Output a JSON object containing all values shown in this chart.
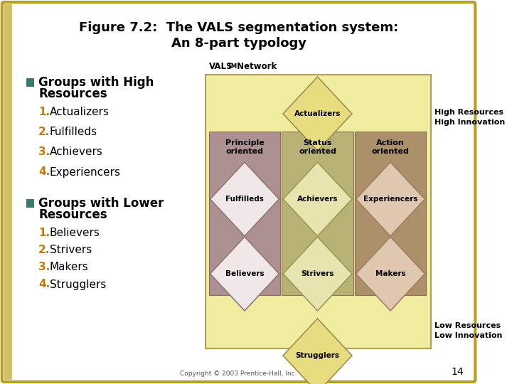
{
  "title_line1": "Figure 7.2:  The VALS segmentation system:",
  "title_line2": "An 8-part typology",
  "bg_color": "#FFFFFF",
  "border_color": "#B8A020",
  "title_color": "#000000",
  "bullet_color": "#3A7A6A",
  "number_color": "#C87800",
  "text_color": "#000000",
  "diagram_bg": "#F0ECA0",
  "diagram_border": "#B0A060",
  "col_colors": [
    "#A08090",
    "#B0A870",
    "#A08060"
  ],
  "col_headers": [
    "Principle\noriented",
    "Status\noriented",
    "Action\noriented"
  ],
  "diamond_data": [
    {
      "label": "Actualizers",
      "col": 1,
      "row": 0,
      "color": "#E8DC80",
      "edge": "#A09050"
    },
    {
      "label": "Fulfilleds",
      "col": 0,
      "row": 1,
      "color": "#F0E8E8",
      "edge": "#907878"
    },
    {
      "label": "Achievers",
      "col": 1,
      "row": 1,
      "color": "#E8E4B0",
      "edge": "#A09850"
    },
    {
      "label": "Experiencers",
      "col": 2,
      "row": 1,
      "color": "#E0C8B0",
      "edge": "#A08060"
    },
    {
      "label": "Believers",
      "col": 0,
      "row": 2,
      "color": "#F0E8E8",
      "edge": "#907878"
    },
    {
      "label": "Strivers",
      "col": 1,
      "row": 2,
      "color": "#E8E4B0",
      "edge": "#A09850"
    },
    {
      "label": "Makers",
      "col": 2,
      "row": 2,
      "color": "#E0C8B0",
      "edge": "#A08060"
    },
    {
      "label": "Strugglers",
      "col": 1,
      "row": 3,
      "color": "#E8DC80",
      "edge": "#A09050"
    }
  ],
  "vals_label": "VALS",
  "tm_label": "TM",
  "network_label": " Network",
  "high_resources": "High Resources\nHigh Innovation",
  "low_resources": "Low Resources\nLow Innovation",
  "copyright": "Copyright © 2003 Prentice-Hall, Inc.",
  "page_number": "14",
  "bullet1_header": "Groups with High\nResources",
  "bullet2_header": "Groups with Lower\nResources",
  "bullet1_items": [
    "Actualizers",
    "Fulfilleds",
    "Achievers",
    "Experiencers"
  ],
  "bullet2_items": [
    "Believers",
    "Strivers",
    "Makers",
    "Strugglers"
  ]
}
